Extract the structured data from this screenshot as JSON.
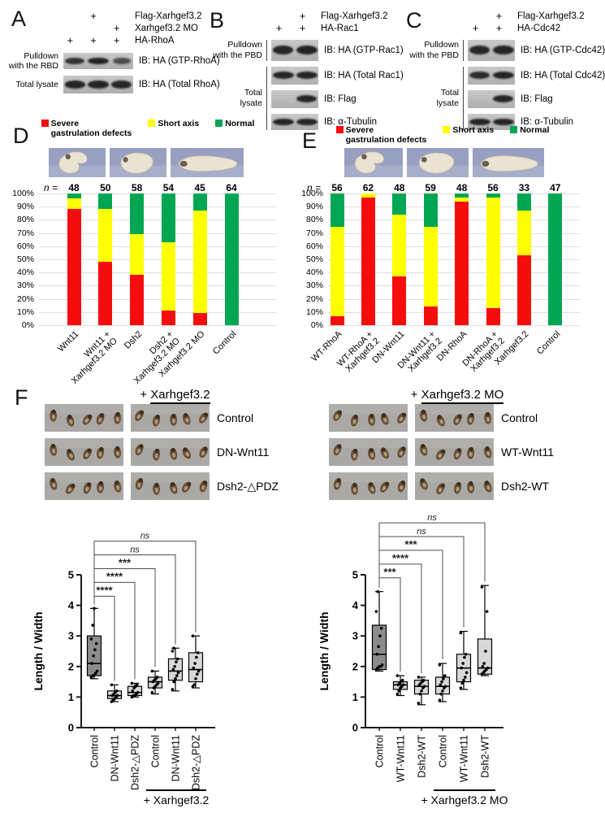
{
  "palette": {
    "severe": "#f50d0d",
    "short_axis": "#ffff00",
    "normal": "#00a651",
    "box_dark": "#8c8c8c",
    "box_light": "#d8d8d8",
    "photo_bg": "#a9a8a4",
    "embryo_photo_bg": "#97a0c0"
  },
  "panels": {
    "A": {
      "label": "A",
      "conditions": [
        {
          "plus": [
            "",
            "+",
            ""
          ],
          "name": "Flag-Xarhgef3.2"
        },
        {
          "plus": [
            "",
            "",
            "+"
          ],
          "name": "Xarhgef3.2 MO"
        },
        {
          "plus": [
            "+",
            "+",
            "+"
          ],
          "name": "HA-RhoA"
        }
      ],
      "blots": [
        {
          "group": "Pulldown\nwith the RBD",
          "ib": "IB: HA (GTP-RhoA)",
          "bands": [
            0.8,
            1,
            0.45
          ]
        },
        {
          "group": "Total lysate",
          "ib": "IB: HA (Total RhoA)",
          "bands": [
            1,
            1,
            0.95
          ]
        }
      ]
    },
    "B": {
      "label": "B",
      "conditions": [
        {
          "plus": [
            "",
            "+"
          ],
          "name": "Flag-Xarhgef3.2"
        },
        {
          "plus": [
            "+",
            "+"
          ],
          "name": "HA-Rac1"
        }
      ],
      "sections": [
        {
          "group": "Pulldown\nwith the PBD",
          "blots": [
            {
              "ib": "IB: HA (GTP-Rac1)",
              "bands": [
                0.95,
                1
              ]
            }
          ]
        },
        {
          "group": "Total\nlysate",
          "blots": [
            {
              "ib": "IB: HA (Total Rac1)",
              "bands": [
                1,
                1
              ]
            },
            {
              "ib": "IB: Flag",
              "bands": [
                0,
                0.95
              ]
            },
            {
              "ib": "IB: α-Tubulin",
              "bands": [
                1,
                1
              ]
            }
          ]
        }
      ]
    },
    "C": {
      "label": "C",
      "conditions": [
        {
          "plus": [
            "",
            "+"
          ],
          "name": "Flag-Xarhgef3.2"
        },
        {
          "plus": [
            "+",
            "+"
          ],
          "name": "HA-Cdc42"
        }
      ],
      "sections": [
        {
          "group": "Pulldown\nwith the PBD",
          "blots": [
            {
              "ib": "IB: HA (GTP-Cdc42)",
              "bands": [
                0.95,
                1
              ]
            }
          ]
        },
        {
          "group": "Total\nlysate",
          "blots": [
            {
              "ib": "IB: HA (Total Cdc42)",
              "bands": [
                0.9,
                1
              ]
            },
            {
              "ib": "IB: Flag",
              "bands": [
                0,
                0.95
              ]
            },
            {
              "ib": "IB: α-Tubulin",
              "bands": [
                1,
                1
              ]
            }
          ]
        }
      ]
    },
    "D": {
      "label": "D",
      "embryo_icons": [
        "severe-embryo",
        "short-axis-embryo",
        "normal-embryo"
      ]
    },
    "E": {
      "label": "E",
      "embryo_icons": [
        "severe-embryo",
        "short-axis-embryo",
        "normal-embryo"
      ]
    },
    "F": {
      "label": "F",
      "left": {
        "header_prefix": "+ ",
        "header": "Xarhgef3.2",
        "rows": [
          "Control",
          "DN-Wnt11",
          "Dsh2-△PDZ"
        ]
      },
      "right": {
        "header_prefix": "+ ",
        "header": "Xarhgef3.2 MO",
        "rows": [
          "Control",
          "WT-Wnt11",
          "Dsh2-WT"
        ]
      }
    }
  },
  "chart_data": [
    {
      "type": "bar",
      "stacked": true,
      "panel": "D",
      "grid": true,
      "legend_position": "top",
      "legend": [
        {
          "label": "Severe\ngastrulation defects",
          "color": "#f50d0d"
        },
        {
          "label": "Short axis",
          "color": "#ffff00"
        },
        {
          "label": "Normal",
          "color": "#00a651"
        }
      ],
      "n_label": "n =",
      "n": [
        48,
        50,
        58,
        54,
        45,
        64
      ],
      "categories": [
        "Wnt11",
        "Wnt11 +\nXarhgef3.2 MO",
        "Dsh2",
        "Dsh2 +\nXarhgef3.2 MO",
        "Xarhgef3.2 MO",
        "Control"
      ],
      "series": [
        {
          "name": "Severe gastrulation defects",
          "key": "severe",
          "color": "#f50d0d",
          "values": [
            88,
            48,
            38,
            11,
            9,
            0
          ]
        },
        {
          "name": "Short axis",
          "key": "short-axis",
          "color": "#ffff00",
          "values": [
            8,
            40,
            31,
            52,
            78,
            0
          ]
        },
        {
          "name": "Normal",
          "key": "normal",
          "color": "#00a651",
          "values": [
            4,
            12,
            31,
            37,
            13,
            100
          ]
        }
      ],
      "y_ticks": [
        "100%",
        "90%",
        "80%",
        "70%",
        "60%",
        "50%",
        "40%",
        "30%",
        "20%",
        "10%",
        "0%"
      ],
      "ylim": [
        0,
        100
      ]
    },
    {
      "type": "bar",
      "stacked": true,
      "panel": "E",
      "grid": true,
      "legend_position": "top",
      "legend": [
        {
          "label": "Severe\ngastrulation defects",
          "color": "#f50d0d"
        },
        {
          "label": "Short axis",
          "color": "#ffff00"
        },
        {
          "label": "Normal",
          "color": "#00a651"
        }
      ],
      "n_label": "n =",
      "n": [
        56,
        62,
        48,
        59,
        48,
        56,
        33,
        47
      ],
      "categories": [
        "WT-RhoA",
        "WT-RhoA +\nXarhgef3.2",
        "DN-Wnt11",
        "DN-Wnt11 +\nXarhgef3.2",
        "DN-RhoA",
        "DN-RhoA +\nXarhgef3.2",
        "Xarhgef3.2",
        "Control"
      ],
      "series": [
        {
          "name": "Severe gastrulation defects",
          "key": "severe",
          "color": "#f50d0d",
          "values": [
            7,
            97,
            37,
            14,
            94,
            13,
            53,
            0
          ]
        },
        {
          "name": "Short axis",
          "key": "short-axis",
          "color": "#ffff00",
          "values": [
            68,
            3,
            47,
            61,
            3,
            84,
            34,
            0
          ]
        },
        {
          "name": "Normal",
          "key": "normal",
          "color": "#00a651",
          "values": [
            25,
            0,
            16,
            25,
            3,
            3,
            13,
            100
          ]
        }
      ],
      "y_ticks": [
        "100%",
        "90%",
        "80%",
        "70%",
        "60%",
        "50%",
        "40%",
        "30%",
        "20%",
        "10%",
        "0%"
      ],
      "ylim": [
        0,
        100
      ]
    },
    {
      "type": "box",
      "panel": "F-left",
      "ylabel": "Length / Width",
      "ylim": [
        0,
        5
      ],
      "y_ticks": [
        "0",
        "1",
        "2",
        "3",
        "4",
        "5"
      ],
      "categories": [
        "Control",
        "DN-Wnt11",
        "Dsh2-△PDZ",
        "Control",
        "DN-Wnt11",
        "Dsh2-△PDZ"
      ],
      "group_label": "+ Xarhgef3.2",
      "group_span": [
        3,
        5
      ],
      "boxes": [
        {
          "whisker_low": 1.6,
          "q1": 1.7,
          "median": 2.1,
          "q3": 3.0,
          "whisker_high": 3.9,
          "fill": "dark",
          "points": [
            1.65,
            1.7,
            1.72,
            1.78,
            1.85,
            2.1,
            2.35,
            2.55,
            2.75,
            2.9,
            3.35,
            3.9
          ]
        },
        {
          "whisker_low": 0.85,
          "q1": 0.95,
          "median": 1.05,
          "q3": 1.2,
          "whisker_high": 1.4,
          "fill": "light",
          "points": [
            0.85,
            0.9,
            0.95,
            1.0,
            1.05,
            1.05,
            1.1,
            1.15,
            1.2,
            1.4
          ]
        },
        {
          "whisker_low": 1.0,
          "q1": 1.05,
          "median": 1.15,
          "q3": 1.35,
          "whisker_high": 1.45,
          "fill": "light",
          "points": [
            1.0,
            1.05,
            1.05,
            1.1,
            1.15,
            1.2,
            1.3,
            1.35,
            1.4,
            1.45
          ]
        },
        {
          "whisker_low": 1.1,
          "q1": 1.3,
          "median": 1.5,
          "q3": 1.65,
          "whisker_high": 1.85,
          "fill": "light",
          "points": [
            1.15,
            1.3,
            1.35,
            1.4,
            1.45,
            1.5,
            1.55,
            1.6,
            1.65,
            1.85
          ]
        },
        {
          "whisker_low": 1.2,
          "q1": 1.55,
          "median": 1.85,
          "q3": 2.25,
          "whisker_high": 2.6,
          "fill": "light",
          "points": [
            1.25,
            1.5,
            1.6,
            1.7,
            1.8,
            1.9,
            2.0,
            2.15,
            2.25,
            2.5,
            2.6
          ]
        },
        {
          "whisker_low": 1.3,
          "q1": 1.5,
          "median": 1.9,
          "q3": 2.45,
          "whisker_high": 3.0,
          "fill": "light",
          "points": [
            1.35,
            1.4,
            1.6,
            1.75,
            1.85,
            1.95,
            2.1,
            2.3,
            2.45,
            3.0
          ]
        }
      ],
      "comparisons": [
        {
          "from": 0,
          "to": 1,
          "label": "****",
          "height": 4.3
        },
        {
          "from": 0,
          "to": 2,
          "label": "****",
          "height": 4.75
        },
        {
          "from": 0,
          "to": 3,
          "label": "***",
          "height": 5.2
        },
        {
          "from": 0,
          "to": 4,
          "label": "ns",
          "height": 5.65
        },
        {
          "from": 0,
          "to": 5,
          "label": "ns",
          "height": 6.1
        }
      ]
    },
    {
      "type": "box",
      "panel": "F-right",
      "ylabel": "Length / Width",
      "ylim": [
        0,
        5
      ],
      "y_ticks": [
        "0",
        "1",
        "2",
        "3",
        "4",
        "5"
      ],
      "categories": [
        "Control",
        "WT-Wnt11",
        "Dsh2-WT",
        "Control",
        "WT-Wnt11",
        "Dsh2-WT"
      ],
      "group_label": "+ Xarhgef3.2 MO",
      "group_span": [
        3,
        5
      ],
      "boxes": [
        {
          "whisker_low": 1.85,
          "q1": 1.9,
          "median": 2.4,
          "q3": 3.35,
          "whisker_high": 4.45,
          "fill": "dark",
          "points": [
            1.9,
            1.95,
            2.0,
            2.0,
            2.05,
            2.4,
            2.65,
            3.0,
            3.25,
            3.8,
            4.45
          ]
        },
        {
          "whisker_low": 1.05,
          "q1": 1.25,
          "median": 1.4,
          "q3": 1.5,
          "whisker_high": 1.7,
          "fill": "light",
          "points": [
            1.1,
            1.2,
            1.3,
            1.35,
            1.4,
            1.4,
            1.45,
            1.5,
            1.55,
            1.7
          ]
        },
        {
          "whisker_low": 0.75,
          "q1": 1.1,
          "median": 1.35,
          "q3": 1.55,
          "whisker_high": 1.65,
          "fill": "light",
          "points": [
            0.8,
            1.1,
            1.2,
            1.3,
            1.35,
            1.4,
            1.45,
            1.5,
            1.55,
            1.65
          ]
        },
        {
          "whisker_low": 0.85,
          "q1": 1.1,
          "median": 1.35,
          "q3": 1.65,
          "whisker_high": 2.1,
          "fill": "light",
          "points": [
            0.9,
            1.1,
            1.2,
            1.3,
            1.35,
            1.4,
            1.5,
            1.6,
            1.7,
            2.05
          ]
        },
        {
          "whisker_low": 1.25,
          "q1": 1.5,
          "median": 1.95,
          "q3": 2.4,
          "whisker_high": 3.15,
          "fill": "light",
          "points": [
            1.3,
            1.45,
            1.55,
            1.65,
            1.8,
            1.95,
            2.1,
            2.3,
            2.4,
            3.1
          ]
        },
        {
          "whisker_low": 1.7,
          "q1": 1.75,
          "median": 1.95,
          "q3": 2.9,
          "whisker_high": 4.65,
          "fill": "light",
          "points": [
            1.75,
            1.8,
            1.85,
            1.9,
            1.95,
            2.0,
            2.1,
            2.5,
            3.8,
            4.6
          ]
        }
      ],
      "comparisons": [
        {
          "from": 0,
          "to": 1,
          "label": "***",
          "height": 4.9
        },
        {
          "from": 0,
          "to": 2,
          "label": "****",
          "height": 5.35
        },
        {
          "from": 0,
          "to": 3,
          "label": "***",
          "height": 5.8
        },
        {
          "from": 0,
          "to": 4,
          "label": "ns",
          "height": 6.25
        },
        {
          "from": 0,
          "to": 5,
          "label": "ns",
          "height": 6.7
        }
      ]
    }
  ]
}
